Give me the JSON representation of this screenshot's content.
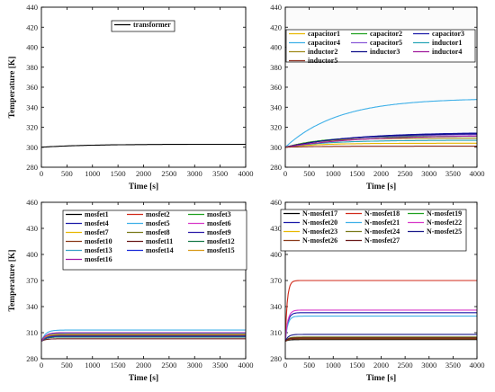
{
  "chart_data": [
    {
      "type": "line",
      "xlabel": "Time [s]",
      "ylabel": "Temperature [K]",
      "xlim": [
        0,
        4000
      ],
      "ylim": [
        280,
        440
      ],
      "xticks": [
        0,
        500,
        1000,
        1500,
        2000,
        2500,
        3000,
        3500,
        4000
      ],
      "yticks": [
        280,
        300,
        320,
        340,
        360,
        380,
        400,
        420,
        440
      ],
      "legend": {
        "placement": "top-center",
        "columns": 1
      },
      "series": [
        {
          "name": "transformer",
          "color": "#000000",
          "start": 300,
          "end": 303,
          "tau": 900
        }
      ]
    },
    {
      "type": "line",
      "xlabel": "Time [s]",
      "ylabel": "",
      "xlim": [
        0,
        4000
      ],
      "ylim": [
        280,
        440
      ],
      "xticks": [
        0,
        500,
        1000,
        1500,
        2000,
        2500,
        3000,
        3500,
        4000
      ],
      "yticks": [
        280,
        300,
        320,
        340,
        360,
        380,
        400,
        420,
        440
      ],
      "legend": {
        "placement": "top",
        "columns": 3
      },
      "series": [
        {
          "name": "capacitor1",
          "color": "#e8b800",
          "start": 300,
          "end": 304,
          "tau": 700
        },
        {
          "name": "capacitor2",
          "color": "#1fa01f",
          "start": 300,
          "end": 311,
          "tau": 800
        },
        {
          "name": "capacitor3",
          "color": "#1a1aa8",
          "start": 300,
          "end": 315,
          "tau": 1400
        },
        {
          "name": "capacitor4",
          "color": "#3fb0e8",
          "start": 300,
          "end": 349,
          "tau": 1100
        },
        {
          "name": "capacitor5",
          "color": "#8a5ad8",
          "start": 300,
          "end": 313,
          "tau": 1200
        },
        {
          "name": "inductor1",
          "color": "#2aa6b8",
          "start": 300,
          "end": 307,
          "tau": 900
        },
        {
          "name": "inductor2",
          "color": "#a08a1a",
          "start": 300,
          "end": 309,
          "tau": 700
        },
        {
          "name": "inductor3",
          "color": "#0f0f8a",
          "start": 300,
          "end": 314,
          "tau": 1300
        },
        {
          "name": "inductor4",
          "color": "#a01a9c",
          "start": 300,
          "end": 312,
          "tau": 1500
        },
        {
          "name": "inductor5",
          "color": "#8a2a1a",
          "start": 300,
          "end": 301,
          "tau": 600
        }
      ]
    },
    {
      "type": "line",
      "xlabel": "Time [s]",
      "ylabel": "Temperature [K]",
      "xlim": [
        0,
        4000
      ],
      "ylim": [
        280,
        460
      ],
      "xticks": [
        0,
        500,
        1000,
        1500,
        2000,
        2500,
        3000,
        3500,
        4000
      ],
      "yticks": [
        280,
        310,
        340,
        370,
        400,
        430,
        460
      ],
      "legend": {
        "placement": "top-left",
        "columns": 3
      },
      "series": [
        {
          "name": "mosfet1",
          "color": "#000000",
          "start": 300,
          "end": 306,
          "tau": 80
        },
        {
          "name": "mosfet2",
          "color": "#d02a1a",
          "start": 300,
          "end": 307,
          "tau": 80
        },
        {
          "name": "mosfet3",
          "color": "#1fa01f",
          "start": 300,
          "end": 305,
          "tau": 80
        },
        {
          "name": "mosfet4",
          "color": "#1a1aa8",
          "start": 300,
          "end": 305,
          "tau": 80
        },
        {
          "name": "mosfet5",
          "color": "#3fb0e8",
          "start": 300,
          "end": 313,
          "tau": 80
        },
        {
          "name": "mosfet6",
          "color": "#d838c8",
          "start": 300,
          "end": 307,
          "tau": 80
        },
        {
          "name": "mosfet7",
          "color": "#e8b800",
          "start": 300,
          "end": 308,
          "tau": 80
        },
        {
          "name": "mosfet8",
          "color": "#7a7a1a",
          "start": 300,
          "end": 309,
          "tau": 80
        },
        {
          "name": "mosfet9",
          "color": "#2a1aa8",
          "start": 300,
          "end": 306,
          "tau": 80
        },
        {
          "name": "mosfet10",
          "color": "#8a3a1a",
          "start": 300,
          "end": 307,
          "tau": 80
        },
        {
          "name": "mosfet11",
          "color": "#6a1a1a",
          "start": 300,
          "end": 303,
          "tau": 80
        },
        {
          "name": "mosfet12",
          "color": "#1a7a4a",
          "start": 300,
          "end": 305,
          "tau": 80
        },
        {
          "name": "mosfet13",
          "color": "#3aa0c8",
          "start": 300,
          "end": 309,
          "tau": 80
        },
        {
          "name": "mosfet14",
          "color": "#1a2ad8",
          "start": 300,
          "end": 306,
          "tau": 80
        },
        {
          "name": "mosfet15",
          "color": "#d89a1a",
          "start": 300,
          "end": 308,
          "tau": 80
        },
        {
          "name": "mosfet16",
          "color": "#a01aa8",
          "start": 300,
          "end": 310,
          "tau": 80
        }
      ]
    },
    {
      "type": "line",
      "xlabel": "Time [s]",
      "ylabel": "",
      "xlim": [
        0,
        4000
      ],
      "ylim": [
        280,
        460
      ],
      "xticks": [
        0,
        500,
        1000,
        1500,
        2000,
        2500,
        3000,
        3500,
        4000
      ],
      "yticks": [
        280,
        310,
        340,
        370,
        400,
        430,
        460
      ],
      "legend": {
        "placement": "top",
        "columns": 3
      },
      "series": [
        {
          "name": "N-mosfet17",
          "color": "#000000",
          "start": 300,
          "end": 302,
          "tau": 60
        },
        {
          "name": "N-mosfet18",
          "color": "#d02a1a",
          "start": 300,
          "end": 370,
          "tau": 40
        },
        {
          "name": "N-mosfet19",
          "color": "#1fa01f",
          "start": 300,
          "end": 304,
          "tau": 60
        },
        {
          "name": "N-mosfet20",
          "color": "#1a1aa8",
          "start": 300,
          "end": 333,
          "tau": 50
        },
        {
          "name": "N-mosfet21",
          "color": "#3fb0e8",
          "start": 300,
          "end": 329,
          "tau": 50
        },
        {
          "name": "N-mosfet22",
          "color": "#d838c8",
          "start": 300,
          "end": 336,
          "tau": 50
        },
        {
          "name": "N-mosfet23",
          "color": "#e8b800",
          "start": 300,
          "end": 303,
          "tau": 60
        },
        {
          "name": "N-mosfet24",
          "color": "#7a7a1a",
          "start": 300,
          "end": 305,
          "tau": 60
        },
        {
          "name": "N-mosfet25",
          "color": "#1a1a8a",
          "start": 300,
          "end": 308,
          "tau": 60
        },
        {
          "name": "N-mosfet26",
          "color": "#8a3a1a",
          "start": 300,
          "end": 303,
          "tau": 60
        },
        {
          "name": "N-mosfet27",
          "color": "#6a1a1a",
          "start": 300,
          "end": 304,
          "tau": 60
        }
      ]
    }
  ]
}
